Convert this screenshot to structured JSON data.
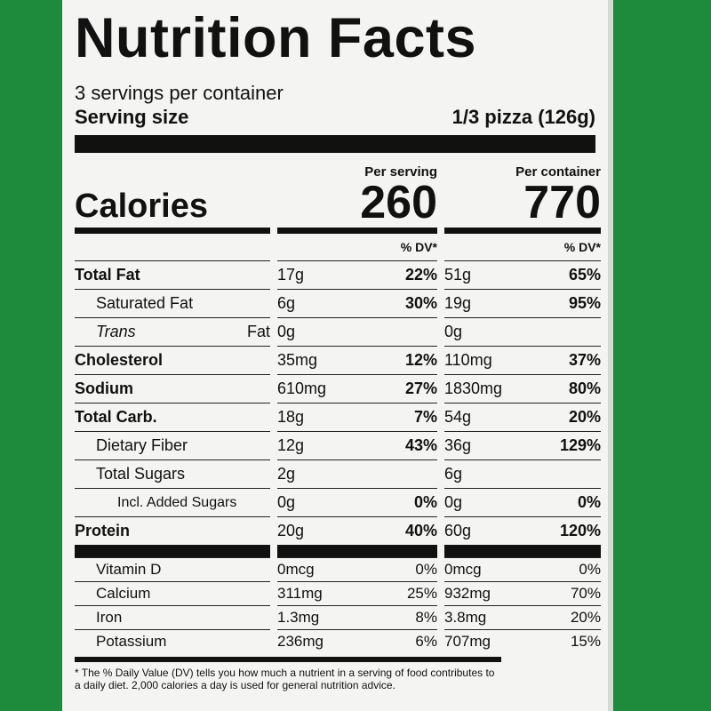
{
  "header": {
    "title": "Nutrition Facts",
    "servings": "3 servings per container",
    "serving_size_label": "Serving size",
    "serving_size": "1/3 pizza (126g)"
  },
  "calories": {
    "label": "Calories",
    "per_serving_label": "Per serving",
    "per_serving": "260",
    "per_container_label": "Per container",
    "per_container": "770"
  },
  "dv_headers": [
    "% DV*",
    "% DV*"
  ],
  "nutrients": [
    [
      "Total Fat",
      "17g",
      "22%",
      "51g",
      "65%"
    ],
    [
      "Saturated Fat",
      "6g",
      "30%",
      "19g",
      "95%"
    ],
    [
      {
        "italic": "Trans",
        "name": "Fat"
      },
      "0g",
      "0g"
    ],
    [
      "Cholesterol",
      "35mg",
      "12%",
      "110mg",
      "37%"
    ],
    [
      "Sodium",
      "610mg",
      "27%",
      "1830mg",
      "80%"
    ],
    [
      "Total Carb.",
      "18g",
      "7%",
      "54g",
      "20%"
    ],
    [
      "Dietary Fiber",
      "12g",
      "43%",
      "36g",
      "129%"
    ],
    [
      "Total Sugars",
      "2g",
      "6g"
    ],
    [
      "Incl. Added Sugars",
      "0g",
      "0%",
      "0g",
      "0%"
    ],
    [
      "Protein",
      "20g",
      "40%",
      "60g",
      "120%"
    ]
  ],
  "vitamins": [
    [
      "Vitamin D",
      "0mcg",
      "0%",
      "0mcg",
      "0%"
    ],
    [
      "Calcium",
      "311mg",
      "25%",
      "932mg",
      "70%"
    ],
    [
      "Iron",
      "1.3mg",
      "8%",
      "3.8mg",
      "20%"
    ],
    [
      "Potassium",
      "236mg",
      "6%",
      "707mg",
      "15%"
    ]
  ],
  "footnote": "* The % Daily Value (DV) tells you how much a nutrient in a serving of food contributes to a daily diet. 2,000 calories a day is used for general nutrition advice."
}
